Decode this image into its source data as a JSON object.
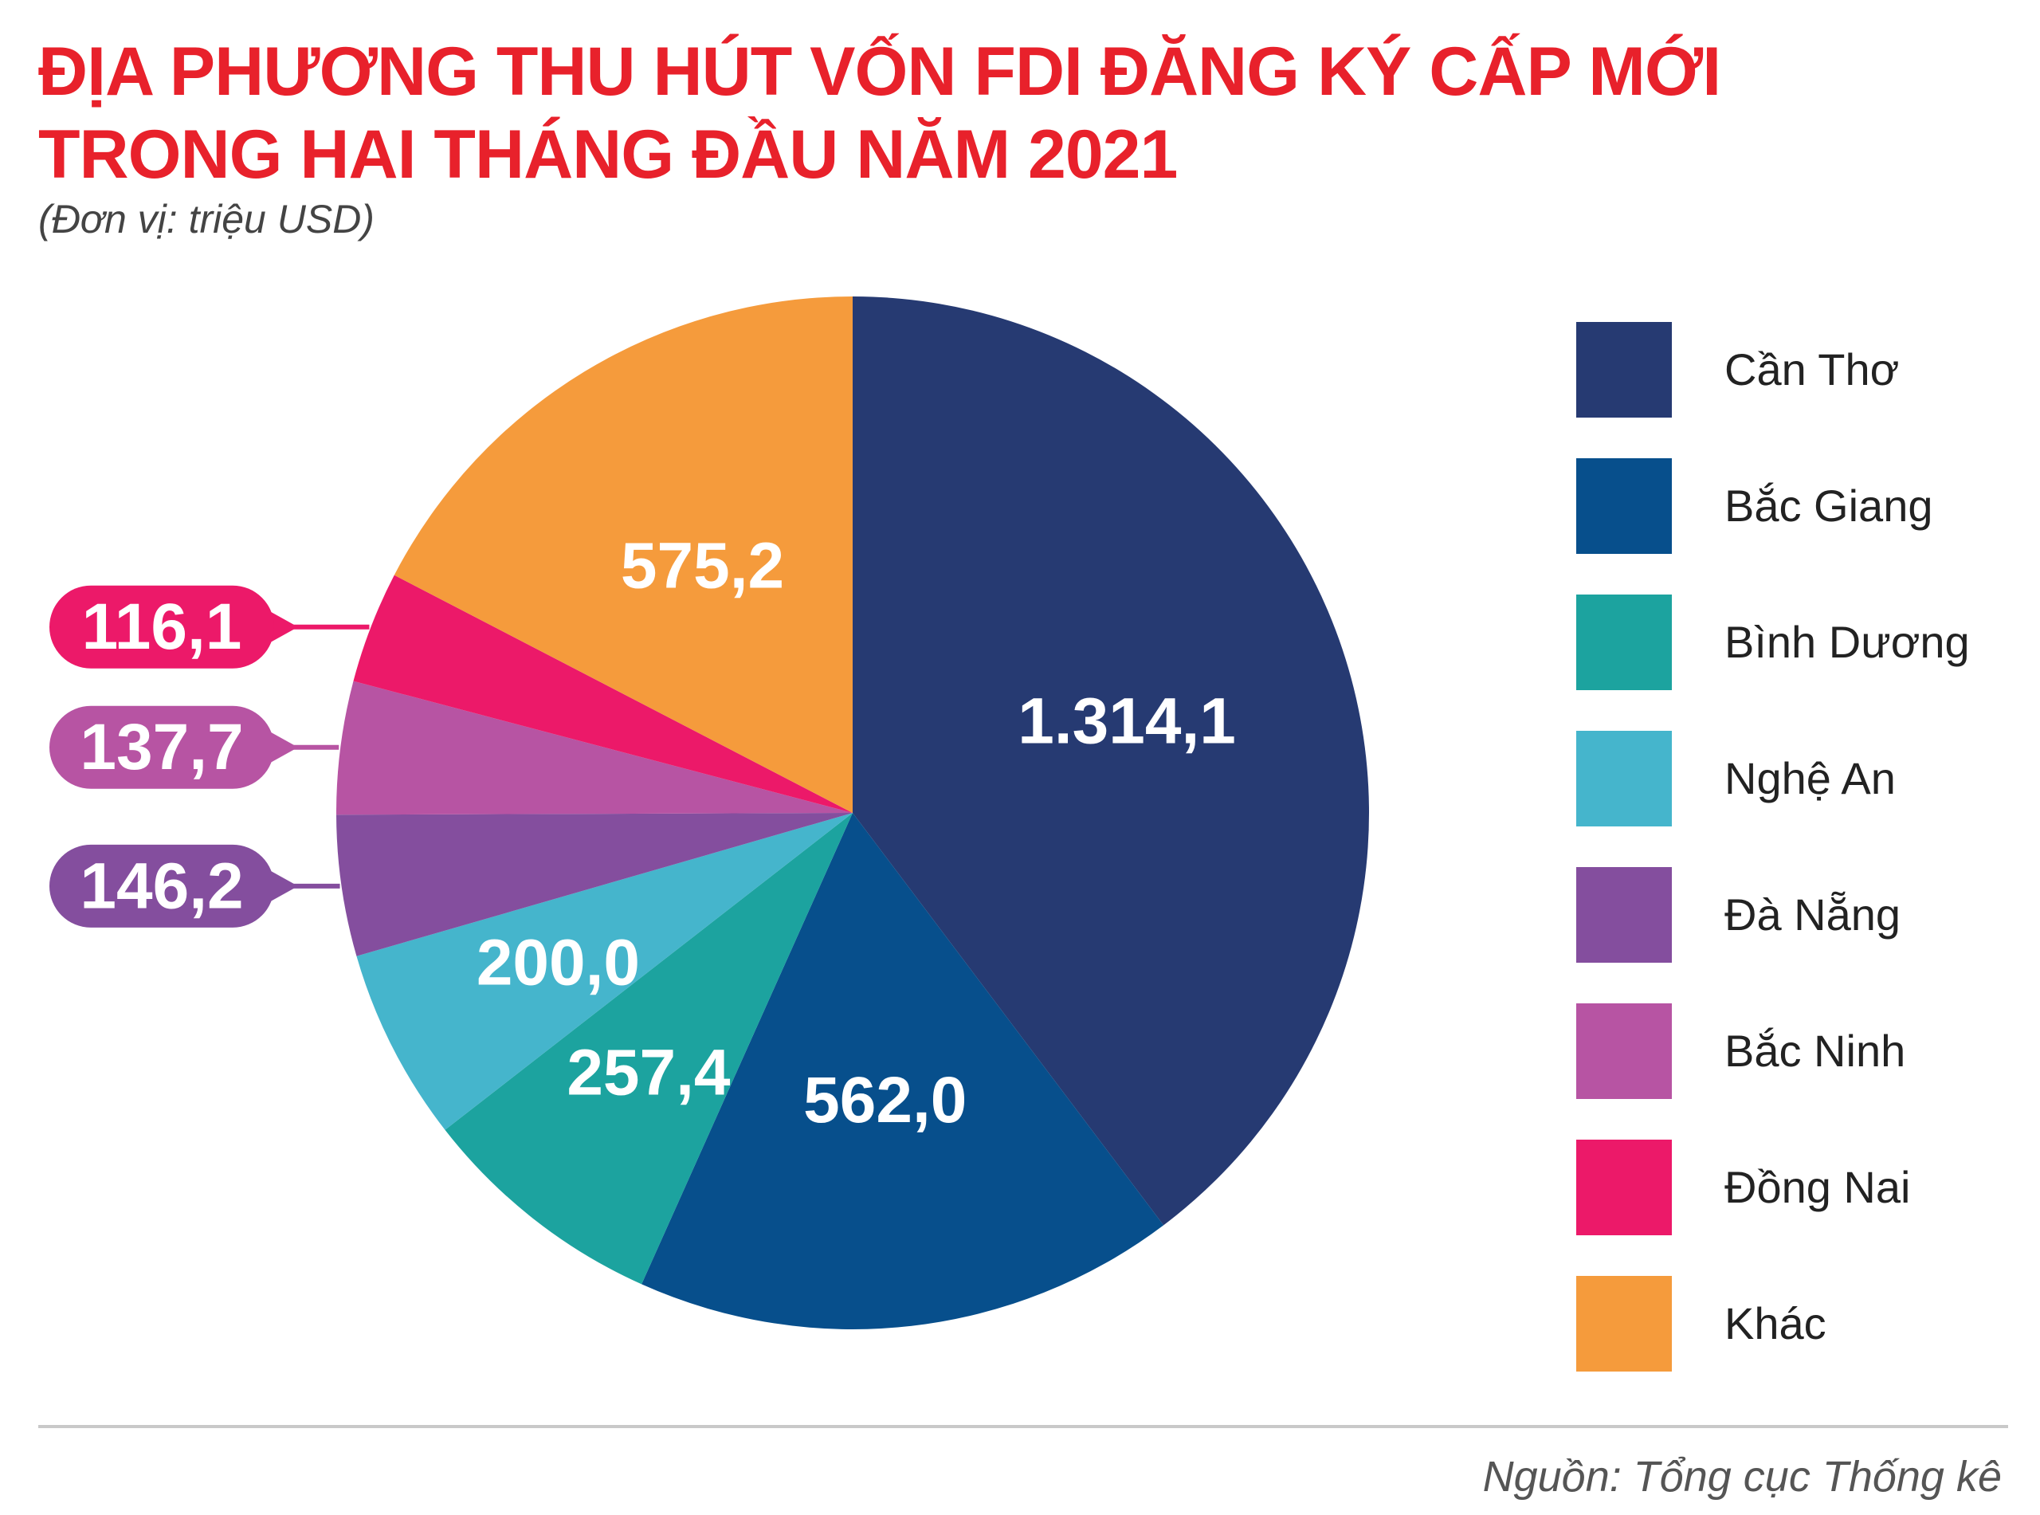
{
  "title_lines": [
    "ĐỊA PHƯƠNG THU HÚT VỐN FDI ĐĂNG KÝ CẤP MỚI",
    "TRONG HAI THÁNG ĐẦU NĂM 2021"
  ],
  "unit": "(Đơn vị: triệu USD)",
  "source": "Nguồn: Tổng cục Thống kê",
  "chart_data": {
    "type": "pie",
    "start": "12 o'clock, clockwise",
    "legend_position": "right",
    "slices": [
      {
        "name": "Cần Thơ",
        "value": 1314.1,
        "label": "1.314,1",
        "color": "#263a72",
        "callout": false
      },
      {
        "name": "Bắc Giang",
        "value": 562.0,
        "label": "562,0",
        "color": "#074f8c",
        "callout": false
      },
      {
        "name": "Bình Dương",
        "value": 257.4,
        "label": "257,4",
        "color": "#1ca39f",
        "callout": false
      },
      {
        "name": "Nghệ An",
        "value": 200.0,
        "label": "200,0",
        "color": "#45b5cc",
        "callout": false
      },
      {
        "name": "Đà Nẵng",
        "value": 146.2,
        "label": "146,2",
        "color": "#844e9e",
        "callout": true
      },
      {
        "name": "Bắc Ninh",
        "value": 137.7,
        "label": "137,7",
        "color": "#b754a3",
        "callout": true
      },
      {
        "name": "Đồng Nai",
        "value": 116.1,
        "label": "116,1",
        "color": "#ec1969",
        "callout": true
      },
      {
        "name": "Khác",
        "value": 575.2,
        "label": "575,2",
        "color": "#f59b3c",
        "callout": false
      }
    ]
  }
}
